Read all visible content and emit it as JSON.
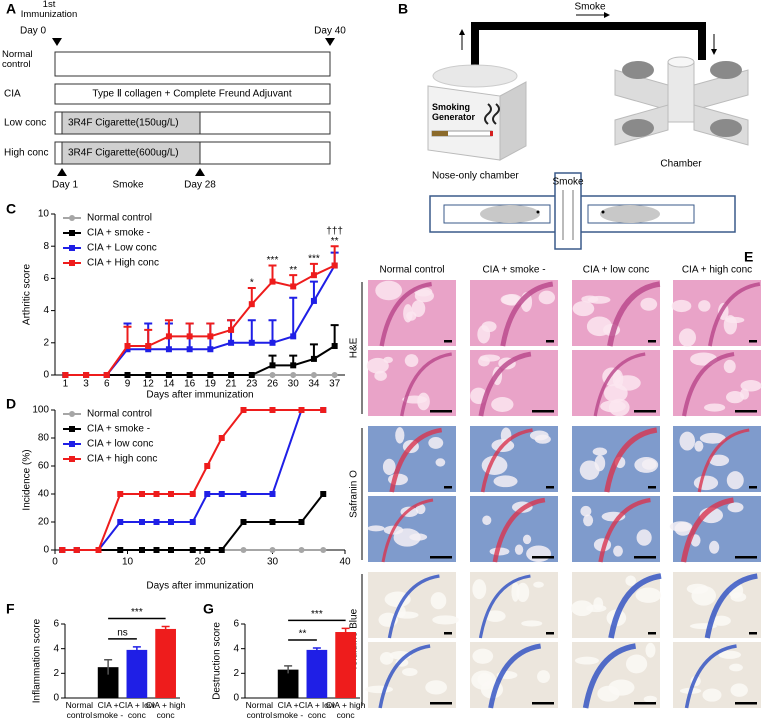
{
  "panel_labels": [
    "A",
    "B",
    "C",
    "D",
    "E",
    "F",
    "G"
  ],
  "timeline": {
    "start_label": "1st Immunization",
    "start_day": "Day 0",
    "end_day": "Day 40",
    "groups": [
      "Normal control",
      "CIA",
      "Low conc",
      "High conc"
    ],
    "bars": [
      "Type Ⅱ collagen + Complete Freund Adjuvant",
      "3R4F Cigarette(150ug/L)",
      "3R4F Cigarette(600ug/L)"
    ],
    "smoke_start": "Day 1",
    "smoke_label": "Smoke",
    "smoke_end": "Day 28"
  },
  "setup": {
    "smoke_top": "Smoke",
    "generator": "Smoking Generator",
    "chamber": "Chamber",
    "nose_only": "Nose-only chamber",
    "smoke_tube": "Smoke"
  },
  "histology": {
    "columns": [
      "Normal control",
      "CIA + smoke -",
      "CIA + low conc",
      "CIA + high conc"
    ],
    "stains": [
      "H&E",
      "Safranin O",
      "Toluidine Blue"
    ]
  },
  "chart_data": [
    {
      "type": "line",
      "categories": [
        1,
        3,
        6,
        9,
        12,
        14,
        16,
        19,
        21,
        23,
        26,
        30,
        34,
        37
      ],
      "xlabel": "Days after immunization",
      "ylabel": "Arthritic score",
      "ylim": [
        0,
        10
      ],
      "yticks": [
        0,
        2,
        4,
        6,
        8,
        10
      ],
      "legend": "upper left",
      "series": [
        {
          "name": "Normal control",
          "color": "#a6a6a6",
          "marker": "circle",
          "values": [
            0,
            0,
            0,
            0,
            0,
            0,
            0,
            0,
            0,
            0,
            0,
            0,
            0,
            0
          ]
        },
        {
          "name": "CIA + smoke -",
          "color": "#000000",
          "marker": "square",
          "values": [
            0,
            0,
            0,
            0,
            0,
            0,
            0,
            0,
            0,
            0,
            0.6,
            0.6,
            1.0,
            1.8
          ],
          "errors": [
            null,
            null,
            null,
            null,
            null,
            null,
            null,
            null,
            null,
            null,
            0.6,
            0.6,
            0.9,
            1.3
          ]
        },
        {
          "name": "CIA + Low conc",
          "color": "#1f1fe6",
          "marker": "square",
          "values": [
            0,
            0,
            0,
            1.6,
            1.6,
            1.6,
            1.6,
            1.6,
            2.0,
            2.0,
            2.0,
            2.4,
            4.6,
            6.8
          ],
          "errors": [
            null,
            null,
            null,
            1.6,
            1.6,
            1.6,
            1.6,
            1.6,
            1.4,
            1.4,
            1.4,
            2.4,
            1.2,
            0.8
          ]
        },
        {
          "name": "CIA + High conc",
          "color": "#ee1c1c",
          "marker": "square",
          "values": [
            0,
            0,
            0,
            1.8,
            1.8,
            2.4,
            2.4,
            2.4,
            2.8,
            4.4,
            5.8,
            5.5,
            6.2,
            6.8
          ],
          "errors": [
            null,
            null,
            null,
            1.2,
            1.0,
            1.0,
            0.8,
            0.8,
            0.6,
            1.0,
            1.0,
            0.7,
            0.7,
            1.2
          ]
        }
      ],
      "annotations": [
        {
          "x": 23,
          "text": "*"
        },
        {
          "x": 26,
          "text": "***"
        },
        {
          "x": 30,
          "text": "**"
        },
        {
          "x": 34,
          "text": "***"
        },
        {
          "x": 37,
          "text": "**"
        },
        {
          "x": 37,
          "text": "†††"
        }
      ]
    },
    {
      "type": "line",
      "x": [
        1,
        3,
        6,
        9,
        12,
        14,
        16,
        19,
        21,
        23,
        26,
        30,
        34,
        37
      ],
      "xlabel": "Days after immunization",
      "ylabel": "Incidence (%)",
      "xlim": [
        0,
        40
      ],
      "xticks": [
        0,
        10,
        20,
        30,
        40
      ],
      "ylim": [
        0,
        100
      ],
      "yticks": [
        0,
        20,
        40,
        60,
        80,
        100
      ],
      "legend": "upper left",
      "series": [
        {
          "name": "Normal control",
          "color": "#a6a6a6",
          "marker": "circle",
          "values": [
            0,
            0,
            0,
            0,
            0,
            0,
            0,
            0,
            0,
            0,
            0,
            0,
            0,
            0
          ]
        },
        {
          "name": "CIA + smoke -",
          "color": "#000000",
          "marker": "square",
          "values": [
            0,
            0,
            0,
            0,
            0,
            0,
            0,
            0,
            0,
            0,
            20,
            20,
            20,
            40
          ]
        },
        {
          "name": "CIA + low conc",
          "color": "#1f1fe6",
          "marker": "square",
          "values": [
            0,
            0,
            0,
            20,
            20,
            20,
            20,
            20,
            40,
            40,
            40,
            40,
            100,
            100
          ]
        },
        {
          "name": "CIA + high conc",
          "color": "#ee1c1c",
          "marker": "square",
          "values": [
            0,
            0,
            0,
            40,
            40,
            40,
            40,
            40,
            60,
            80,
            100,
            100,
            100,
            100
          ]
        }
      ]
    },
    {
      "type": "bar",
      "categories": [
        "Normal control",
        "CIA + smoke -",
        "CIA + low conc",
        "CIA + high conc"
      ],
      "ylabel": "Inflammation score",
      "values": [
        0,
        2.5,
        3.9,
        5.6
      ],
      "errors": [
        null,
        0.6,
        0.25,
        0.2
      ],
      "colors": [
        "#000000",
        "#000000",
        "#1f1fe6",
        "#ee1c1c"
      ],
      "ylim": [
        0,
        6
      ],
      "yticks": [
        0,
        2,
        4,
        6
      ],
      "comparisons": [
        {
          "between": [
            1,
            2
          ],
          "text": "ns"
        },
        {
          "between": [
            1,
            3
          ],
          "text": "***"
        }
      ]
    },
    {
      "type": "bar",
      "categories": [
        "Normal control",
        "CIA + smoke -",
        "CIA + low conc",
        "CIA + high conc"
      ],
      "ylabel": "Destruction score",
      "values": [
        0,
        2.3,
        3.9,
        5.35
      ],
      "errors": [
        null,
        0.3,
        0.15,
        0.3
      ],
      "colors": [
        "#000000",
        "#000000",
        "#1f1fe6",
        "#ee1c1c"
      ],
      "ylim": [
        0,
        6
      ],
      "yticks": [
        0,
        2,
        4,
        6
      ],
      "comparisons": [
        {
          "between": [
            1,
            2
          ],
          "text": "**"
        },
        {
          "between": [
            1,
            3
          ],
          "text": "***"
        }
      ]
    }
  ]
}
